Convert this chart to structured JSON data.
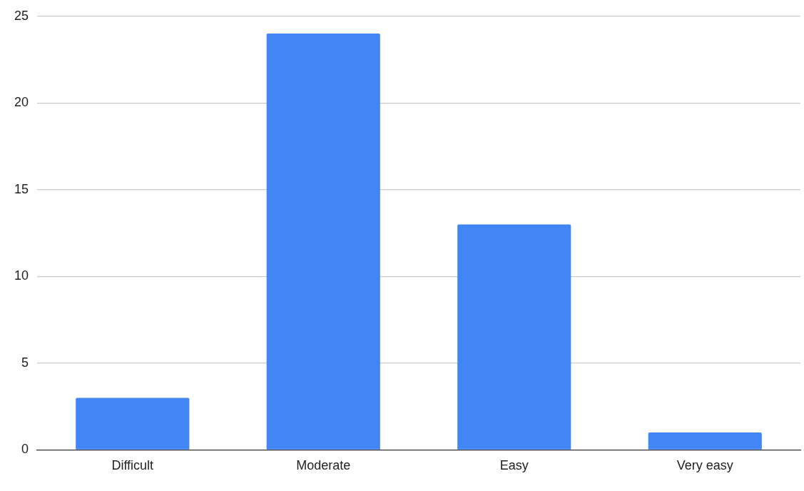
{
  "chart_data": {
    "type": "bar",
    "categories": [
      "Difficult",
      "Moderate",
      "Easy",
      "Very easy"
    ],
    "values": [
      3,
      24,
      13,
      1
    ],
    "color": "#4285f4",
    "ylim": [
      0,
      25
    ],
    "yticks": [
      0,
      5,
      10,
      15,
      20,
      25
    ],
    "grid": "y"
  }
}
